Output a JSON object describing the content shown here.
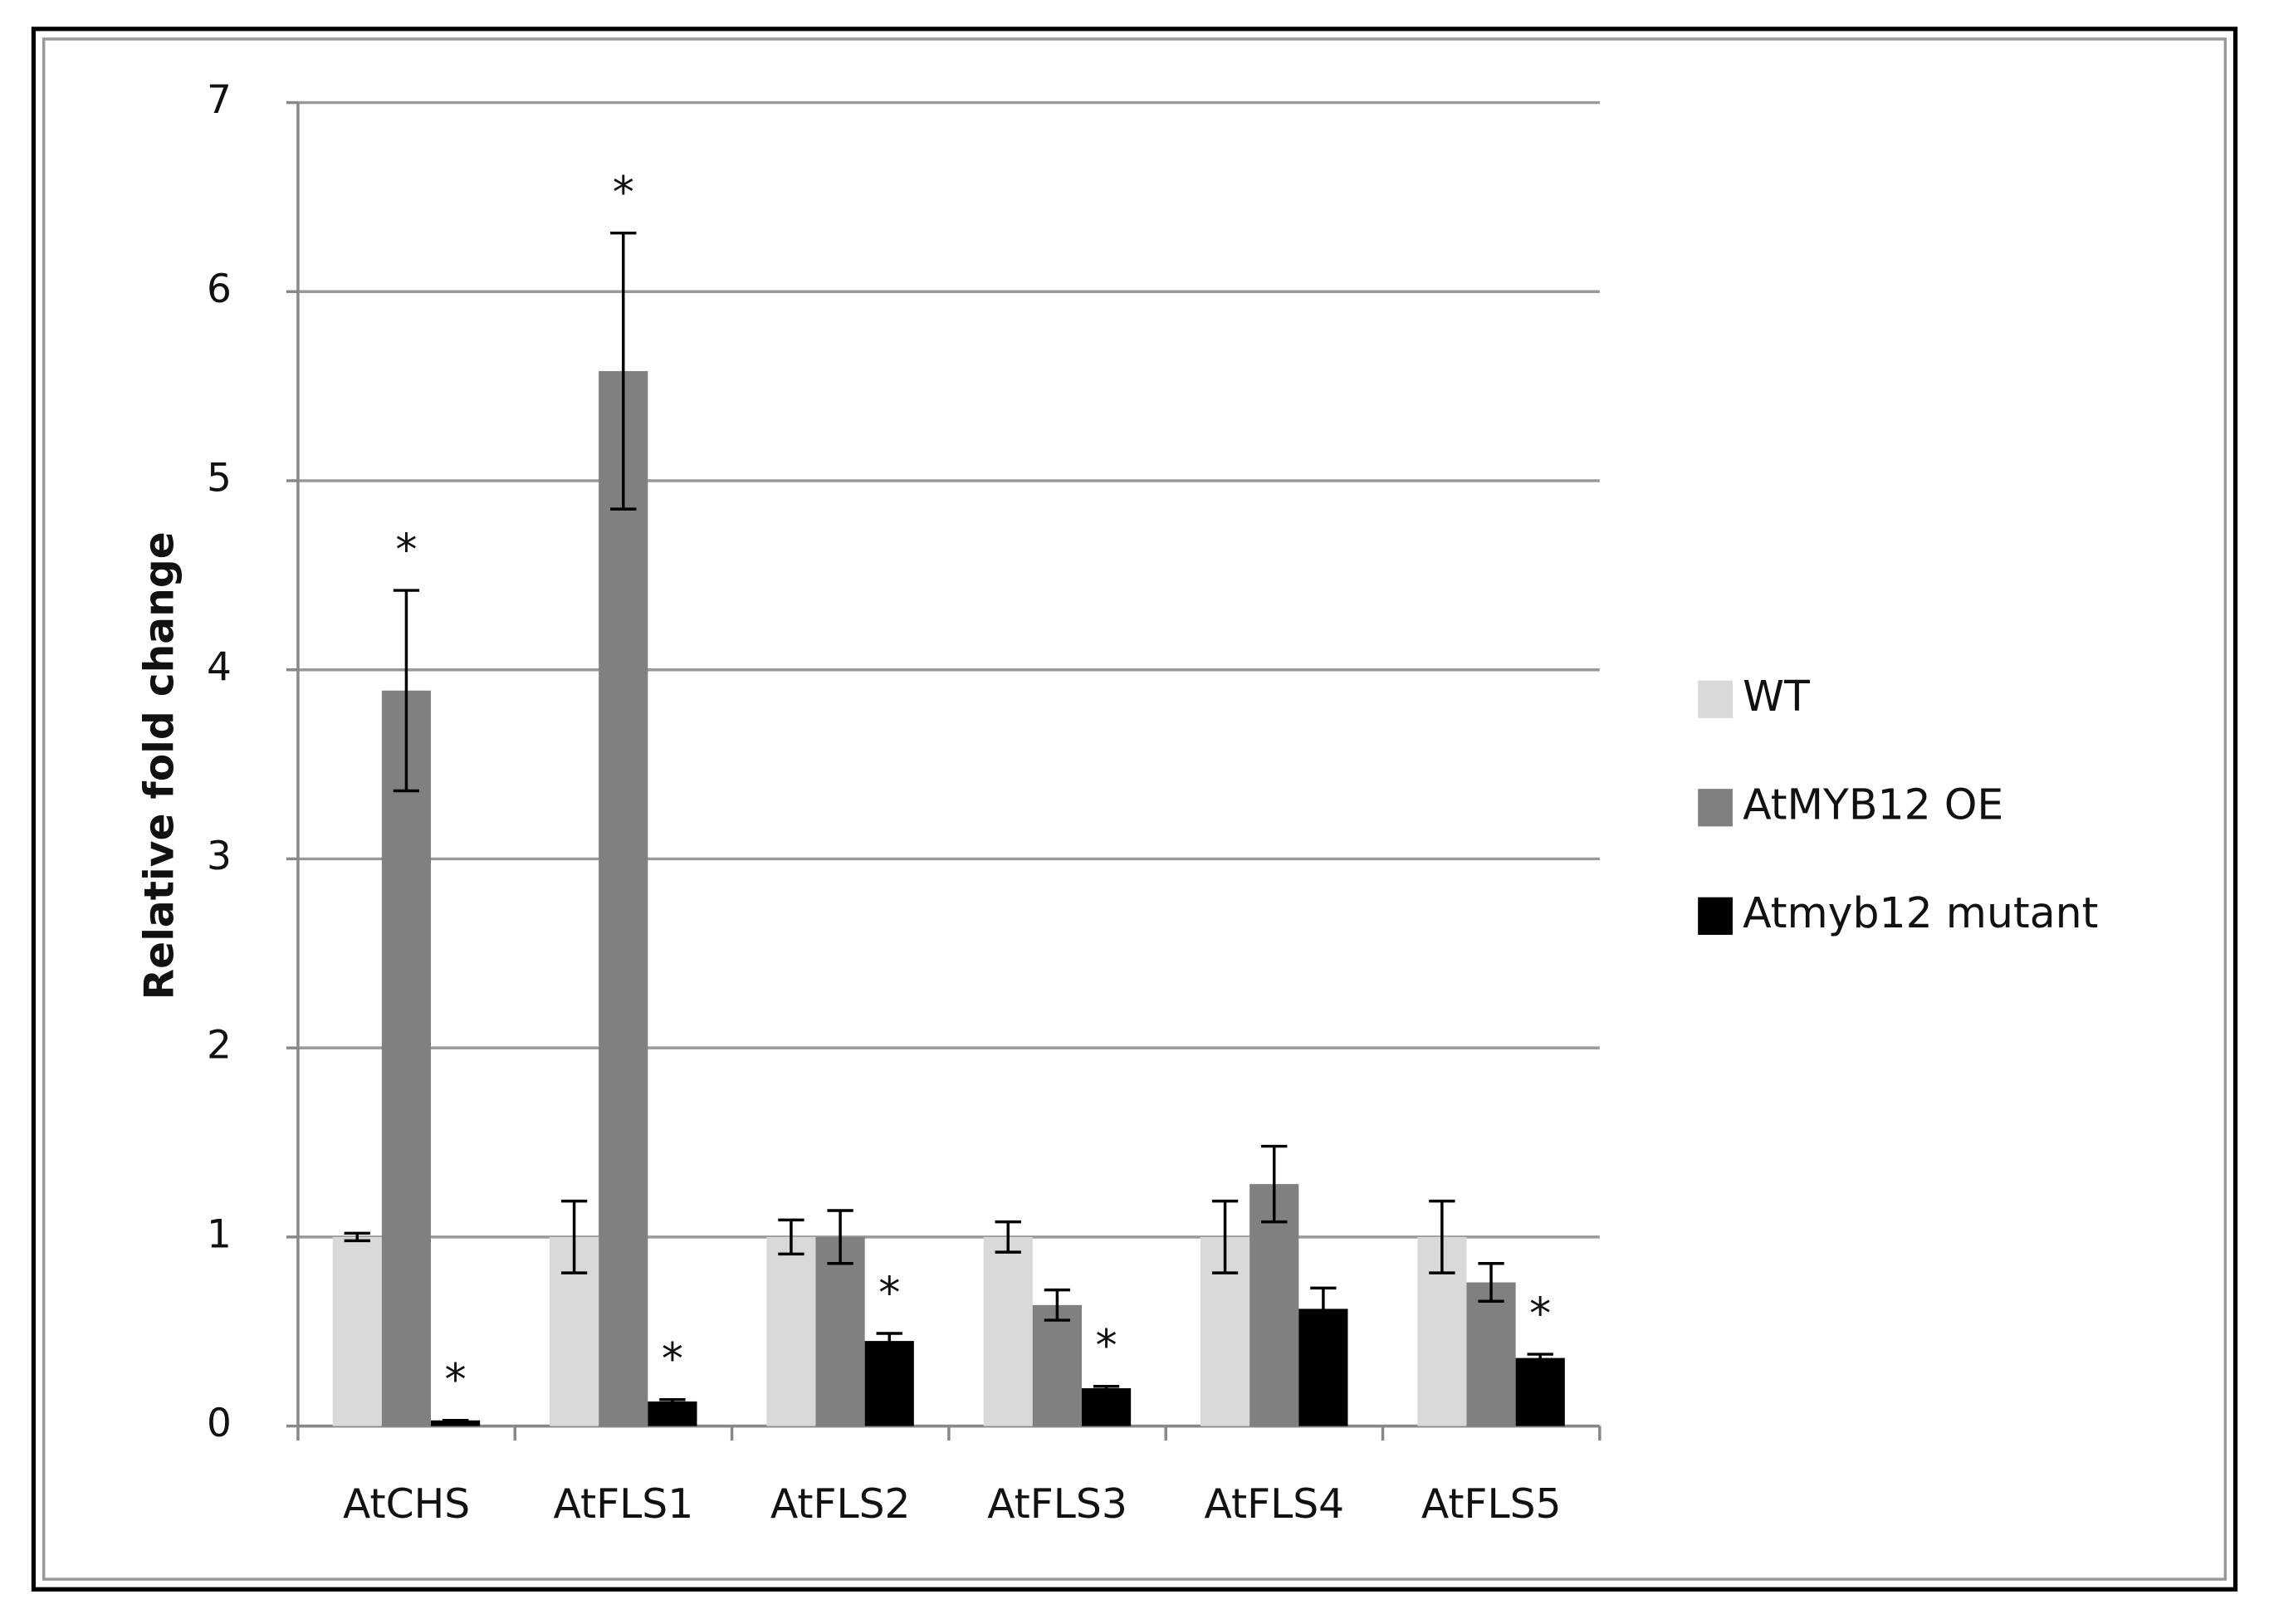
{
  "chart_data": {
    "type": "bar",
    "y_label": "Relative fold change",
    "categories": [
      "AtCHS",
      "AtFLS1",
      "AtFLS2",
      "AtFLS3",
      "AtFLS4",
      "AtFLS5"
    ],
    "series": [
      {
        "name": "WT",
        "color": "#d9d9d9",
        "values": [
          1,
          1,
          1,
          1,
          1,
          1
        ],
        "errors": [
          0.02,
          0.19,
          0.09,
          0.08,
          0.19,
          0.19
        ],
        "annotations": [
          null,
          null,
          null,
          null,
          null,
          null
        ]
      },
      {
        "name": "AtMYB12 OE",
        "color": "#808080",
        "values": [
          3.89,
          5.58,
          1.0,
          0.64,
          1.28,
          0.76
        ],
        "errors": [
          0.53,
          0.73,
          0.14,
          0.08,
          0.2,
          0.1
        ],
        "annotations": [
          "*",
          "*",
          null,
          null,
          null,
          null
        ]
      },
      {
        "name": "Atmyb12 mutant",
        "color": "#000000",
        "values": [
          0.03,
          0.13,
          0.45,
          0.2,
          0.62,
          0.36
        ],
        "errors": [
          0,
          0.01,
          0.04,
          0.01,
          0.11,
          0.02
        ],
        "annotations": [
          "*",
          "*",
          "*",
          "*",
          null,
          "*"
        ]
      }
    ],
    "ylim": [
      0,
      7
    ],
    "yticks": [
      0,
      1,
      2,
      3,
      4,
      5,
      6,
      7
    ],
    "grid": true,
    "legend": "right"
  }
}
